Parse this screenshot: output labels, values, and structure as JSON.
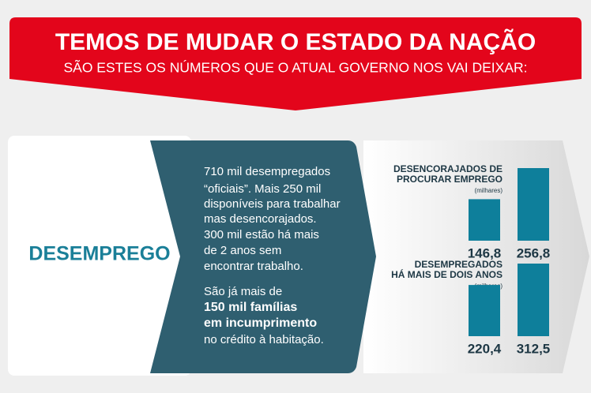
{
  "header": {
    "title": "TEMOS DE MUDAR O ESTADO DA NAÇÃO",
    "subtitle": "SÃO ESTES OS NÚMEROS QUE O ATUAL GOVERNO NOS VAI DEIXAR:"
  },
  "section": "DESEMPREGO",
  "text": {
    "paragraph1": [
      "710 mil desempregados",
      "“oficiais”. Mais 250 mil",
      "disponíveis para trabalhar",
      "mas desencorajados.",
      "300 mil estão há mais",
      "de 2 anos sem",
      "encontrar trabalho."
    ],
    "paragraph2": [
      "São já mais de",
      "150 mil famílias",
      "em incumprimento",
      "no crédito à habitação."
    ]
  },
  "chart_data": [
    {
      "type": "bar",
      "title": [
        "DESENCORAJADOS DE",
        "PROCURAR EMPREGO"
      ],
      "unit": "(milhares)",
      "values": [
        146.8,
        256.8
      ],
      "value_labels": [
        "146,8",
        "256,8"
      ],
      "color": "#0e7f9b"
    },
    {
      "type": "bar",
      "title": [
        "DESEMPREGADOS",
        "HÁ MAIS DE DOIS ANOS"
      ],
      "unit": "(milhares)",
      "values": [
        220.4,
        312.5
      ],
      "value_labels": [
        "220,4",
        "312,5"
      ],
      "color": "#0e7f9b"
    }
  ]
}
